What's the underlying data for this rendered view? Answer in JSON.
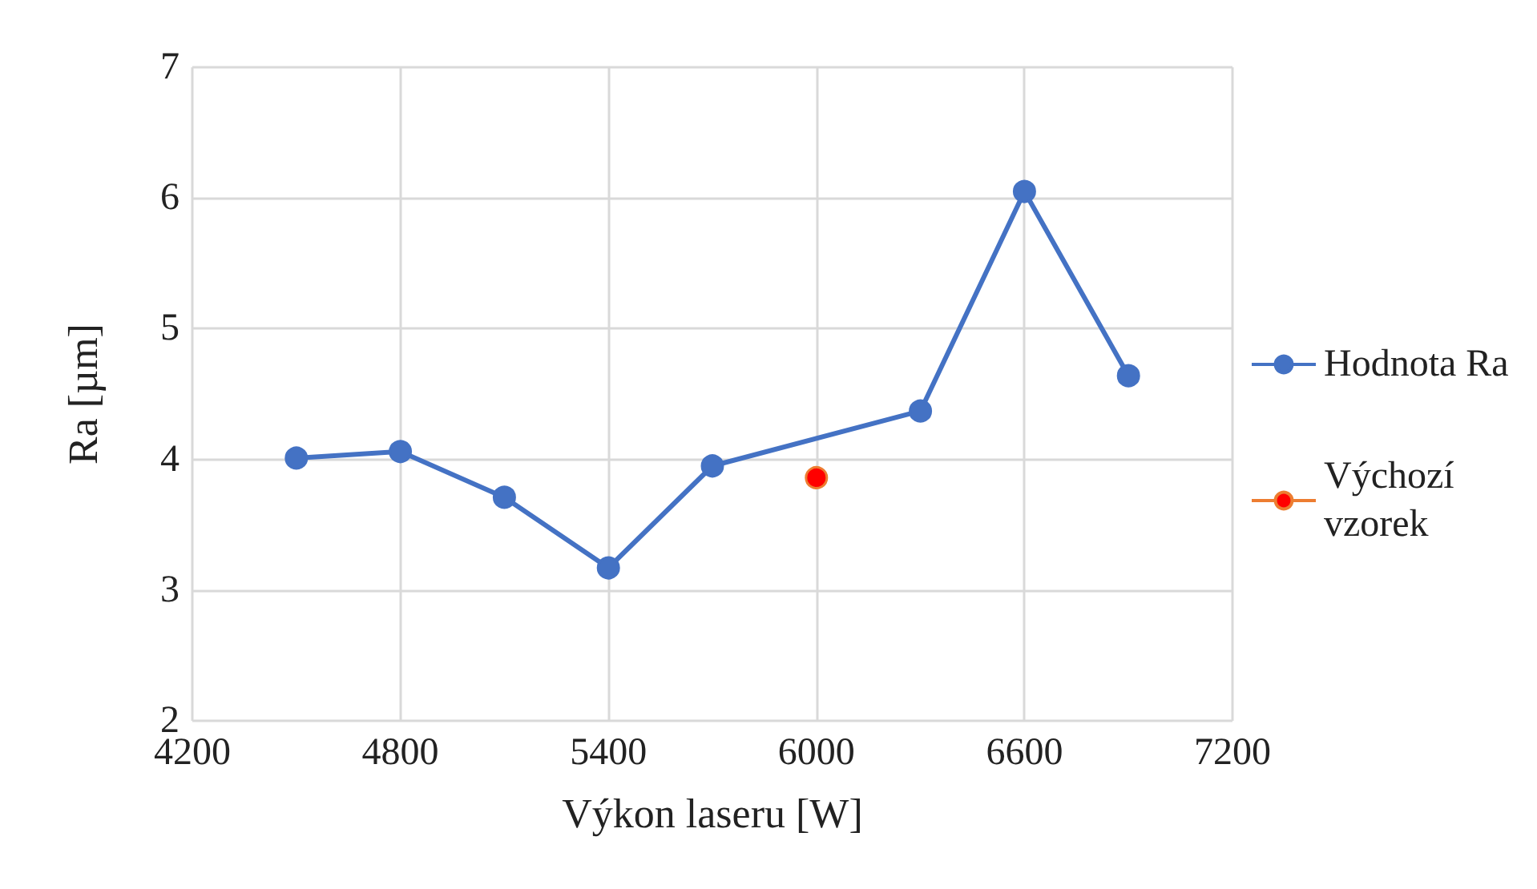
{
  "chart_data": {
    "type": "line",
    "xlabel": "Výkon laseru [W]",
    "ylabel": "Ra [µm]",
    "xlim": [
      4200,
      7200
    ],
    "xticks": [
      4200,
      4800,
      5400,
      6000,
      6600,
      7200
    ],
    "ylim": [
      2,
      7
    ],
    "yticks": [
      2,
      3,
      4,
      5,
      6,
      7
    ],
    "grid": true,
    "legend": "right",
    "marker": "circle",
    "series": [
      {
        "name": "Hodnota Ra",
        "color": "#4472c4",
        "x": [
          4500,
          4800,
          5100,
          5400,
          5700,
          6300,
          6600,
          6900
        ],
        "values": [
          4.01,
          4.06,
          3.71,
          3.17,
          3.95,
          4.37,
          6.05,
          4.64
        ]
      },
      {
        "name": "Výchozí vzorek",
        "color": "#ff0000",
        "x": [
          6000
        ],
        "values": [
          3.86
        ]
      }
    ]
  }
}
